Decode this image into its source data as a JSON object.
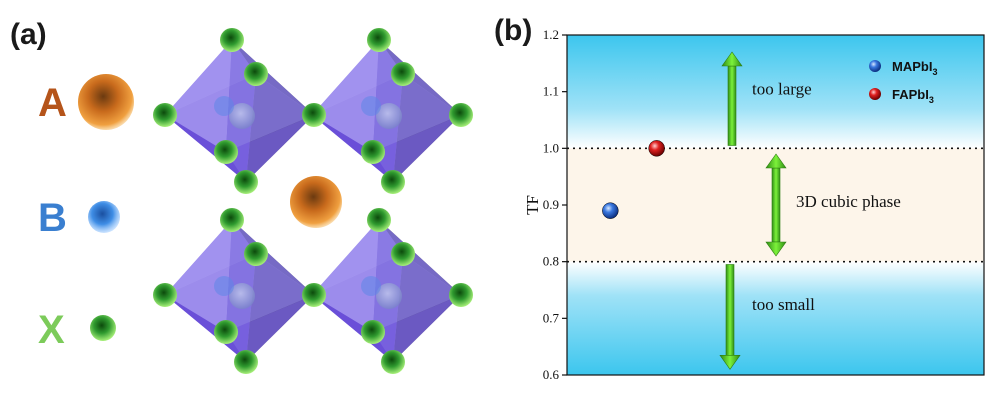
{
  "panel_a": {
    "label": "(a)",
    "legend": [
      {
        "letter": "A",
        "letter_color": "#b5541a",
        "ball": "A"
      },
      {
        "letter": "B",
        "letter_color": "#3a7fd0",
        "ball": "B"
      },
      {
        "letter": "X",
        "letter_color": "#7ccb5a",
        "ball": "X"
      }
    ]
  },
  "panel_b": {
    "label": "(b)"
  },
  "chart_data": {
    "type": "scatter",
    "xlabel": "",
    "ylabel": "TF",
    "ylim": [
      0.6,
      1.2
    ],
    "yticks": [
      "0.6",
      "0.7",
      "0.8",
      "0.9",
      "1.0",
      "1.1",
      "1.2"
    ],
    "grid": false,
    "thresholds": [
      0.8,
      1.0
    ],
    "series": [
      {
        "name": "MAPbI",
        "subscript": "3",
        "x": 1,
        "y": 0.89,
        "color": "#2f6fd6"
      },
      {
        "name": "FAPbI",
        "subscript": "3",
        "x": 2,
        "y": 1.0,
        "color": "#d81f1f"
      }
    ],
    "xlim": [
      0,
      9
    ],
    "regions": [
      {
        "label": "too large",
        "arrow": "up",
        "from": 1.005,
        "to": 1.17
      },
      {
        "label": "3D cubic phase",
        "arrow": "both",
        "from": 0.81,
        "to": 0.99
      },
      {
        "label": "too small",
        "arrow": "down",
        "from": 0.795,
        "to": 0.61
      }
    ],
    "legend_position": "top-right"
  }
}
